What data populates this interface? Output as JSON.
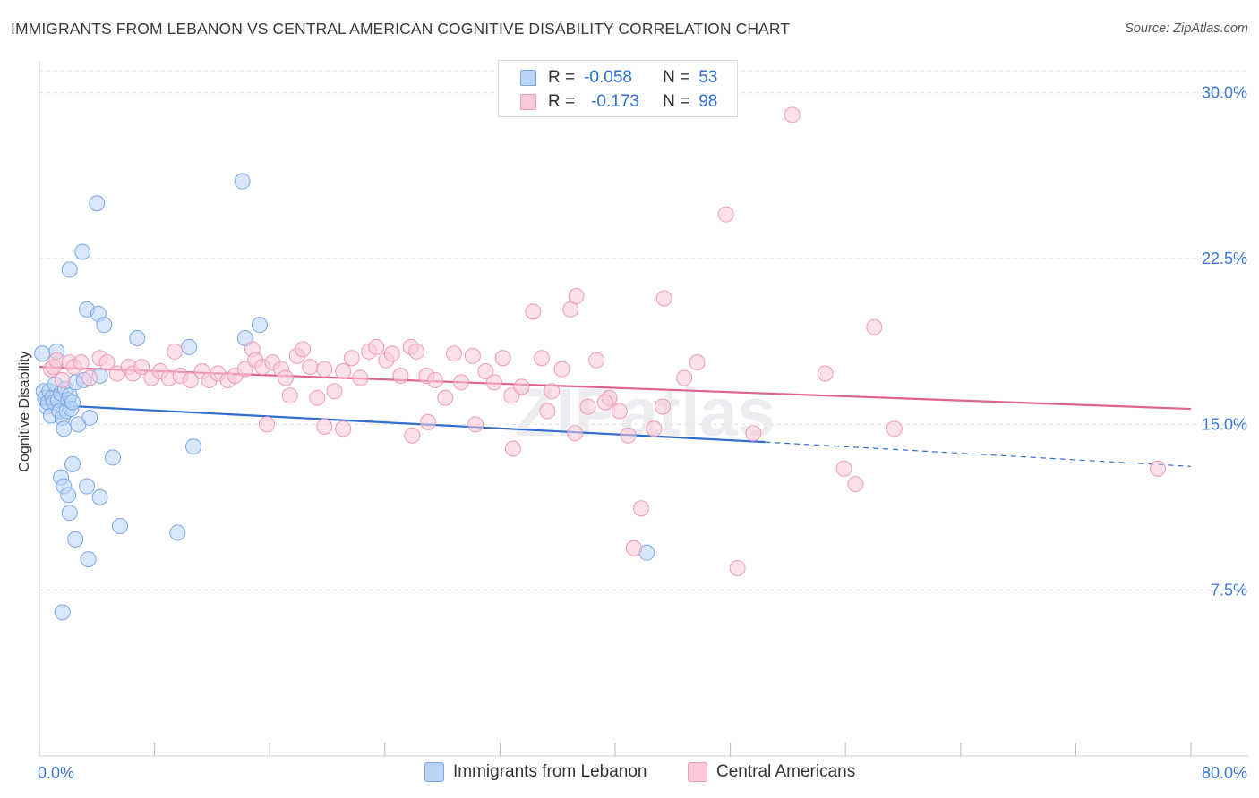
{
  "title": "IMMIGRANTS FROM LEBANON VS CENTRAL AMERICAN COGNITIVE DISABILITY CORRELATION CHART",
  "source": "Source: ZipAtlas.com",
  "watermark": "ZIPatlas",
  "legend": {
    "rows": [
      {
        "r_label": "R =",
        "r_value": "-0.058",
        "n_label": "N =",
        "n_value": "53"
      },
      {
        "r_label": "R =",
        "r_value": "-0.173",
        "n_label": "N =",
        "n_value": "98"
      }
    ]
  },
  "colors": {
    "blue_fill": "#b8d3f5",
    "blue_stroke": "#7aa6e6",
    "blue_line": "#2e6fd1",
    "pink_fill": "#f9c9d8",
    "pink_stroke": "#ee9ab6",
    "pink_line": "#e0628f",
    "axis_label": "#3a78d4",
    "grid": "#dddddd"
  },
  "chart_data": {
    "type": "scatter",
    "title": "IMMIGRANTS FROM LEBANON VS CENTRAL AMERICAN COGNITIVE DISABILITY CORRELATION CHART",
    "xlabel": "",
    "ylabel": "Cognitive Disability",
    "xlim": [
      0,
      80
    ],
    "ylim": [
      0,
      31
    ],
    "x_tick_labels": [
      "0.0%",
      "80.0%"
    ],
    "y_ticks": [
      7.5,
      15.0,
      22.5,
      30.0
    ],
    "y_tick_labels": [
      "7.5%",
      "15.0%",
      "22.5%",
      "30.0%"
    ],
    "series": [
      {
        "name": "Immigrants from Lebanon",
        "color": "blue",
        "trend": {
          "x0": 0,
          "y0": 15.9,
          "x1": 50.4,
          "y1": 14.2,
          "dash_to_x": 80,
          "dash_to_y": 13.1
        },
        "points": [
          [
            0.2,
            18.2
          ],
          [
            0.3,
            16.5
          ],
          [
            0.4,
            16.2
          ],
          [
            0.5,
            15.8
          ],
          [
            0.6,
            16.0
          ],
          [
            0.7,
            16.5
          ],
          [
            0.8,
            15.4
          ],
          [
            0.9,
            16.2
          ],
          [
            1.0,
            16.0
          ],
          [
            1.1,
            16.8
          ],
          [
            1.2,
            18.3
          ],
          [
            1.3,
            16.1
          ],
          [
            1.4,
            15.6
          ],
          [
            1.5,
            16.4
          ],
          [
            1.6,
            15.3
          ],
          [
            1.7,
            14.8
          ],
          [
            1.8,
            16.6
          ],
          [
            1.9,
            15.6
          ],
          [
            2.0,
            16.1
          ],
          [
            2.1,
            16.3
          ],
          [
            2.2,
            15.7
          ],
          [
            2.3,
            16.0
          ],
          [
            2.5,
            16.9
          ],
          [
            2.7,
            15.0
          ],
          [
            1.5,
            12.6
          ],
          [
            1.7,
            12.2
          ],
          [
            2.0,
            11.8
          ],
          [
            2.1,
            11.0
          ],
          [
            2.3,
            13.2
          ],
          [
            2.5,
            9.8
          ],
          [
            3.3,
            12.2
          ],
          [
            3.4,
            8.9
          ],
          [
            3.1,
            17.0
          ],
          [
            3.3,
            20.2
          ],
          [
            2.1,
            22.0
          ],
          [
            3.0,
            22.8
          ],
          [
            4.1,
            20.0
          ],
          [
            4.5,
            19.5
          ],
          [
            4.2,
            17.2
          ],
          [
            4.0,
            25.0
          ],
          [
            4.2,
            11.7
          ],
          [
            5.1,
            13.5
          ],
          [
            5.6,
            10.4
          ],
          [
            6.8,
            18.9
          ],
          [
            9.6,
            10.1
          ],
          [
            10.4,
            18.5
          ],
          [
            10.7,
            14.0
          ],
          [
            14.1,
            26.0
          ],
          [
            14.3,
            18.9
          ],
          [
            15.3,
            19.5
          ],
          [
            3.5,
            15.3
          ],
          [
            1.6,
            6.5
          ],
          [
            42.2,
            9.2
          ]
        ]
      },
      {
        "name": "Central Americans",
        "color": "pink",
        "trend": {
          "x0": 0,
          "y0": 17.6,
          "x1": 80,
          "y1": 15.7
        },
        "points": [
          [
            0.8,
            17.5
          ],
          [
            1.0,
            17.6
          ],
          [
            1.2,
            17.9
          ],
          [
            1.6,
            17.0
          ],
          [
            2.1,
            17.8
          ],
          [
            2.4,
            17.6
          ],
          [
            2.9,
            17.8
          ],
          [
            3.5,
            17.1
          ],
          [
            4.2,
            18.0
          ],
          [
            4.7,
            17.8
          ],
          [
            5.4,
            17.3
          ],
          [
            6.2,
            17.6
          ],
          [
            6.5,
            17.3
          ],
          [
            7.1,
            17.6
          ],
          [
            7.8,
            17.1
          ],
          [
            8.4,
            17.4
          ],
          [
            9.0,
            17.1
          ],
          [
            9.4,
            18.3
          ],
          [
            9.8,
            17.2
          ],
          [
            10.5,
            17.0
          ],
          [
            11.3,
            17.4
          ],
          [
            11.8,
            17.0
          ],
          [
            12.4,
            17.3
          ],
          [
            13.1,
            17.0
          ],
          [
            13.6,
            17.2
          ],
          [
            14.3,
            17.5
          ],
          [
            14.8,
            18.4
          ],
          [
            15.0,
            17.9
          ],
          [
            15.5,
            17.6
          ],
          [
            16.2,
            17.8
          ],
          [
            16.8,
            17.5
          ],
          [
            17.1,
            17.1
          ],
          [
            17.4,
            16.3
          ],
          [
            17.9,
            18.1
          ],
          [
            18.3,
            18.4
          ],
          [
            18.8,
            17.6
          ],
          [
            19.3,
            16.2
          ],
          [
            19.8,
            17.5
          ],
          [
            20.5,
            16.5
          ],
          [
            21.1,
            17.4
          ],
          [
            21.7,
            18.0
          ],
          [
            22.3,
            17.1
          ],
          [
            22.9,
            18.3
          ],
          [
            23.4,
            18.5
          ],
          [
            24.1,
            17.9
          ],
          [
            24.5,
            18.2
          ],
          [
            25.1,
            17.2
          ],
          [
            25.8,
            18.5
          ],
          [
            26.2,
            18.3
          ],
          [
            26.9,
            17.2
          ],
          [
            27.5,
            17.0
          ],
          [
            28.2,
            16.2
          ],
          [
            28.8,
            18.2
          ],
          [
            29.3,
            16.9
          ],
          [
            30.1,
            18.1
          ],
          [
            31.0,
            17.4
          ],
          [
            31.6,
            16.9
          ],
          [
            32.2,
            18.0
          ],
          [
            32.8,
            16.3
          ],
          [
            33.5,
            16.7
          ],
          [
            34.3,
            20.1
          ],
          [
            34.9,
            18.0
          ],
          [
            35.6,
            16.5
          ],
          [
            36.3,
            17.5
          ],
          [
            36.9,
            20.2
          ],
          [
            37.3,
            20.8
          ],
          [
            38.1,
            15.8
          ],
          [
            38.7,
            17.9
          ],
          [
            39.6,
            16.2
          ],
          [
            40.3,
            15.6
          ],
          [
            41.3,
            9.4
          ],
          [
            41.8,
            11.2
          ],
          [
            42.7,
            14.8
          ],
          [
            43.4,
            20.7
          ],
          [
            44.8,
            17.1
          ],
          [
            45.7,
            17.8
          ],
          [
            47.7,
            24.5
          ],
          [
            48.5,
            8.5
          ],
          [
            52.3,
            29.0
          ],
          [
            54.6,
            17.3
          ],
          [
            55.9,
            13.0
          ],
          [
            56.7,
            12.3
          ],
          [
            58.0,
            19.4
          ],
          [
            77.7,
            13.0
          ],
          [
            15.8,
            15.0
          ],
          [
            19.8,
            14.9
          ],
          [
            21.1,
            14.8
          ],
          [
            25.9,
            14.5
          ],
          [
            27.0,
            15.1
          ],
          [
            30.3,
            15.0
          ],
          [
            32.9,
            13.9
          ],
          [
            35.3,
            15.6
          ],
          [
            37.2,
            14.6
          ],
          [
            39.3,
            16.0
          ],
          [
            40.9,
            14.5
          ],
          [
            43.3,
            15.8
          ],
          [
            49.6,
            14.6
          ],
          [
            59.4,
            14.8
          ]
        ]
      }
    ]
  },
  "bottom_legend": {
    "items": [
      {
        "label": "Immigrants from Lebanon"
      },
      {
        "label": "Central Americans"
      }
    ]
  }
}
